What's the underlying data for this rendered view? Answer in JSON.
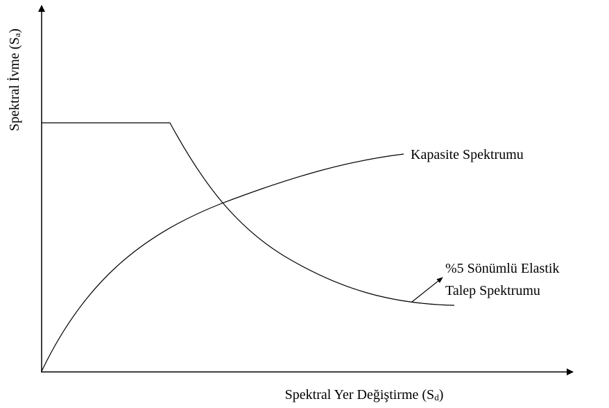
{
  "diagram": {
    "y_axis_label": {
      "text": "Spektral İvme (S",
      "subscript": "a",
      "close": ")"
    },
    "x_axis_label": {
      "text": "Spektral Yer Değiştirme (S",
      "subscript": "d",
      "close": ")"
    },
    "capacity_label": "Kapasite Spektrumu",
    "demand_label": [
      "%5 Sönümlü Elastik",
      "Talep Spektrumu"
    ]
  }
}
